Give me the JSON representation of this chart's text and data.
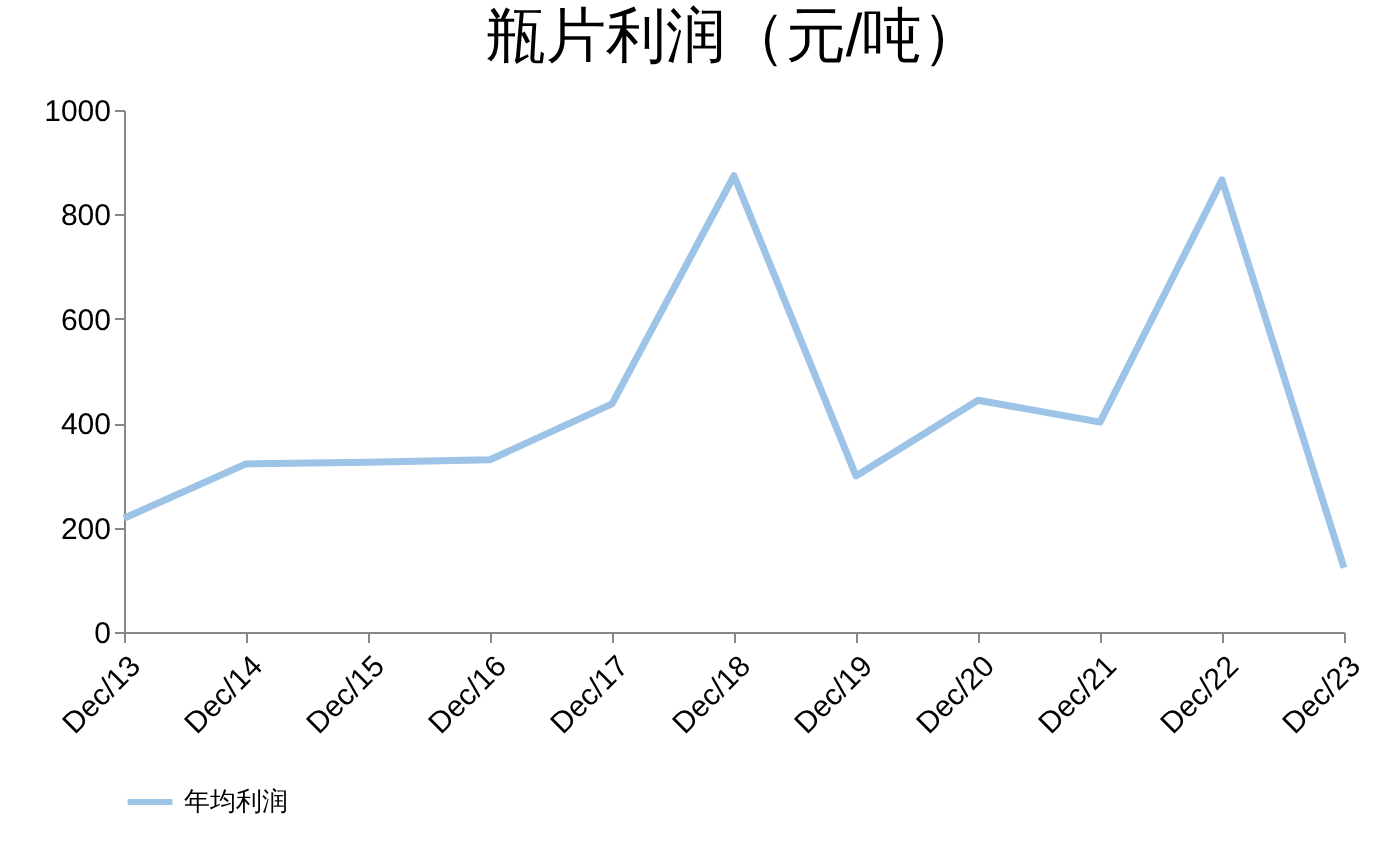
{
  "chart_data": {
    "type": "line",
    "title": "瓶片利润（元/吨）",
    "categories": [
      "Dec/13",
      "Dec/14",
      "Dec/15",
      "Dec/16",
      "Dec/17",
      "Dec/18",
      "Dec/19",
      "Dec/20",
      "Dec/21",
      "Dec/22",
      "Dec/23"
    ],
    "series": [
      {
        "name": "年均利润",
        "color": "#9dc3e6",
        "values": [
          218,
          322,
          325,
          330,
          437,
          874,
          299,
          444,
          402,
          866,
          123
        ]
      }
    ],
    "ylim": [
      0,
      1000
    ],
    "yticks": [
      0,
      200,
      400,
      600,
      800,
      1000
    ],
    "grid": false,
    "legend": "bottom",
    "marker": "none",
    "line_style": "solid"
  }
}
